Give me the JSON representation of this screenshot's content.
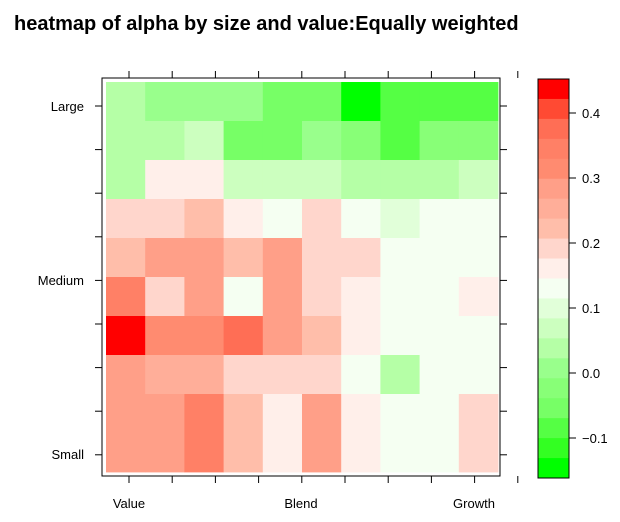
{
  "chart_data": {
    "type": "heatmap",
    "title": "heatmap of alpha by size and value:Equally weighted",
    "xlabel": "",
    "ylabel": "",
    "x_labels": [
      "Value",
      "Blend",
      "Growth"
    ],
    "y_labels": [
      "Large",
      "Medium",
      "Small"
    ],
    "columns": 10,
    "rows": 10,
    "values_top_to_bottom": [
      [
        0.02,
        -0.02,
        -0.02,
        -0.02,
        -0.06,
        -0.06,
        -0.16,
        -0.08,
        -0.08,
        -0.08
      ],
      [
        0.02,
        0.02,
        0.05,
        -0.06,
        -0.06,
        -0.02,
        -0.04,
        -0.08,
        -0.04,
        -0.04
      ],
      [
        0.02,
        0.14,
        0.14,
        0.05,
        0.05,
        0.05,
        0.02,
        0.02,
        0.02,
        0.05
      ],
      [
        0.22,
        0.22,
        0.26,
        0.16,
        0.12,
        0.22,
        0.12,
        0.08,
        0.12,
        0.12
      ],
      [
        0.26,
        0.3,
        0.3,
        0.26,
        0.3,
        0.22,
        0.22,
        0.12,
        0.12,
        0.12
      ],
      [
        0.36,
        0.22,
        0.3,
        0.12,
        0.3,
        0.22,
        0.16,
        0.12,
        0.12,
        0.16
      ],
      [
        0.44,
        0.33,
        0.33,
        0.39,
        0.3,
        0.26,
        0.16,
        0.12,
        0.12,
        0.12
      ],
      [
        0.3,
        0.28,
        0.28,
        0.22,
        0.22,
        0.22,
        0.12,
        0.02,
        0.12,
        0.12
      ],
      [
        0.3,
        0.3,
        0.36,
        0.26,
        0.16,
        0.3,
        0.16,
        0.12,
        0.12,
        0.22
      ],
      [
        0.3,
        0.3,
        0.36,
        0.26,
        0.16,
        0.3,
        0.16,
        0.12,
        0.12,
        0.22
      ]
    ],
    "colorbar": {
      "ticks": [
        0.4,
        0.3,
        0.2,
        0.1,
        0.0,
        -0.1
      ],
      "tick_labels": [
        "0.4",
        "0.3",
        "0.2",
        "0.1",
        "0.0",
        "−0.1"
      ],
      "levels": [
        0.45,
        0.42,
        0.39,
        0.36,
        0.33,
        0.3,
        0.28,
        0.26,
        0.22,
        0.16,
        0.12,
        0.08,
        0.05,
        0.02,
        -0.02,
        -0.04,
        -0.06,
        -0.08,
        -0.12,
        -0.16
      ],
      "colors": [
        "#ff0000",
        "#ff4a33",
        "#ff6e55",
        "#ff8066",
        "#ff8b70",
        "#ff9f88",
        "#ffae99",
        "#ffbeaa",
        "#ffd6cc",
        "#ffefea",
        "#f5fff2",
        "#e1ffd9",
        "#ccffbf",
        "#b5ffa6",
        "#99ff8c",
        "#88ff77",
        "#77ff66",
        "#55ff44",
        "#33ff22",
        "#00ff00"
      ]
    },
    "grid": false,
    "legend": "right colorbar"
  }
}
